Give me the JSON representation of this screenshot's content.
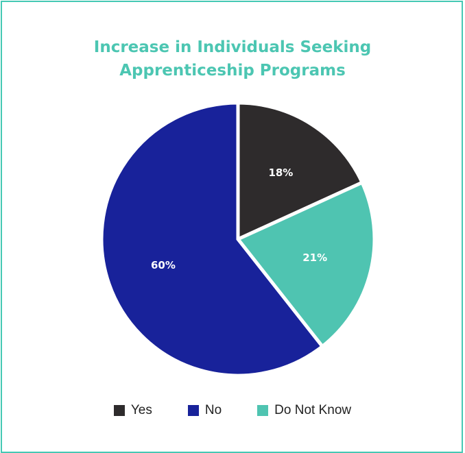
{
  "chart_data": {
    "type": "pie",
    "title_lines": [
      "Increase in Individuals Seeking",
      "Apprenticeship Programs"
    ],
    "series": [
      {
        "name": "Yes",
        "value": 18,
        "label": "18%",
        "color": "#2e2b2c"
      },
      {
        "name": "Do Not Know",
        "value": 21,
        "label": "21%",
        "color": "#4fc4b1"
      },
      {
        "name": "No",
        "value": 60,
        "label": "60%",
        "color": "#18229a"
      }
    ],
    "legend": [
      {
        "name": "Yes",
        "color": "#2e2b2c"
      },
      {
        "name": "No",
        "color": "#18229a"
      },
      {
        "name": "Do Not Know",
        "color": "#4fc4b1"
      }
    ],
    "legend_position": "bottom"
  },
  "colors": {
    "border": "#45c8b4",
    "title": "#4cc6b2"
  }
}
